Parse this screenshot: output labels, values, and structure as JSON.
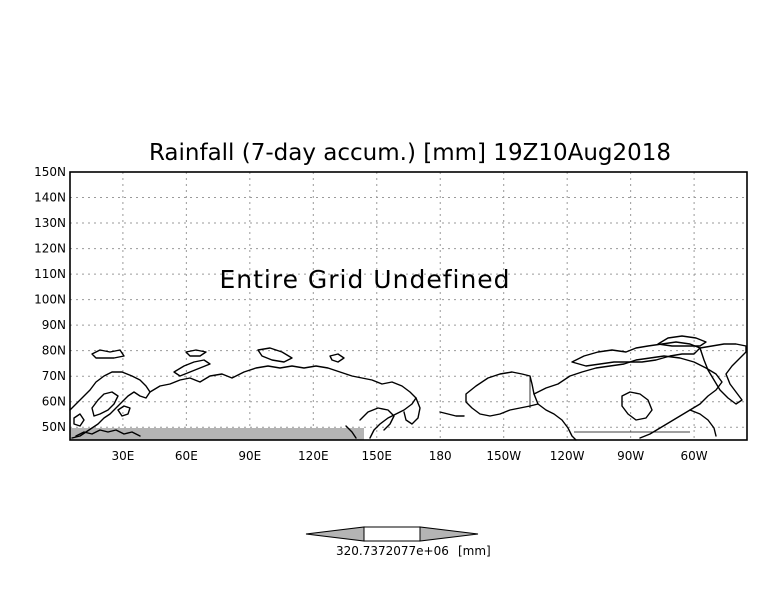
{
  "map": {
    "title": "Rainfall (7-day accum.) [mm] 19Z10Aug2018",
    "message": "Entire Grid Undefined",
    "lat_labels": [
      "150N",
      "140N",
      "130N",
      "120N",
      "110N",
      "100N",
      "90N",
      "80N",
      "70N",
      "60N",
      "50N"
    ],
    "lon_labels": [
      "30E",
      "60E",
      "90E",
      "120E",
      "150E",
      "180",
      "150W",
      "120W",
      "90W",
      "60W"
    ],
    "lat_range": [
      45,
      150
    ],
    "lon_range": [
      5,
      325
    ],
    "grid": true,
    "undefined_band_color": "#b4b4b4"
  },
  "colorbar": {
    "label": "320.7372077e+06",
    "units": "[mm]",
    "fill_color": "#b4b4b4"
  }
}
